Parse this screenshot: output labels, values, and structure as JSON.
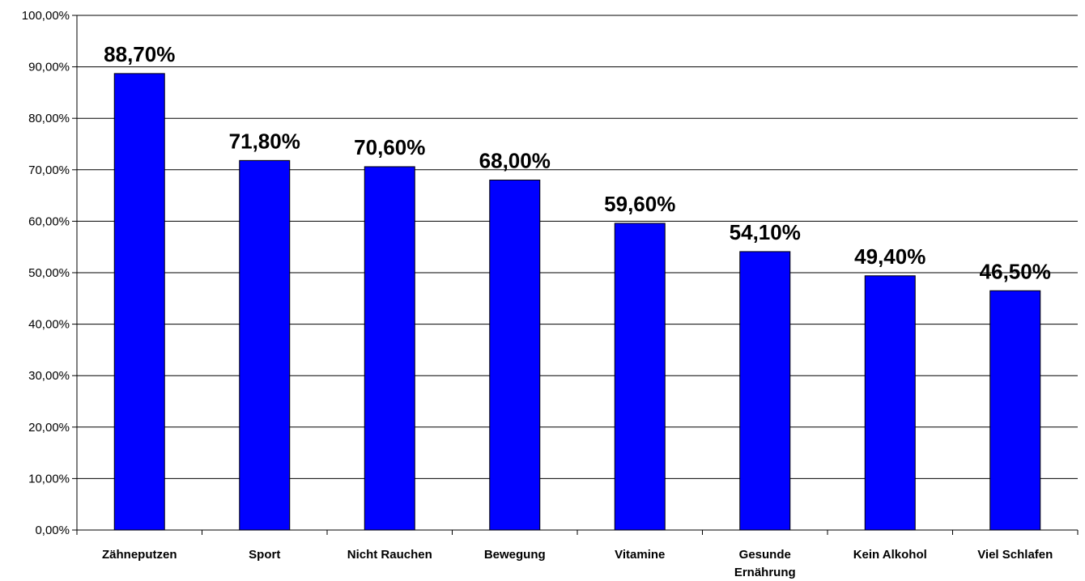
{
  "chart_data": {
    "type": "bar",
    "categories": [
      "Zähneputzen",
      "Sport",
      "Nicht Rauchen",
      "Bewegung",
      "Vitamine",
      "Gesunde Ernährung",
      "Kein Alkohol",
      "Viel Schlafen"
    ],
    "category_lines": [
      [
        "Zähneputzen"
      ],
      [
        "Sport"
      ],
      [
        "Nicht Rauchen"
      ],
      [
        "Bewegung"
      ],
      [
        "Vitamine"
      ],
      [
        "Gesunde",
        "Ernährung"
      ],
      [
        "Kein Alkohol"
      ],
      [
        "Viel Schlafen"
      ]
    ],
    "values": [
      88.7,
      71.8,
      70.6,
      68.0,
      59.6,
      54.1,
      49.4,
      46.5
    ],
    "data_labels": [
      "88,70%",
      "71,80%",
      "70,60%",
      "68,00%",
      "59,60%",
      "54,10%",
      "49,40%",
      "46,50%"
    ],
    "yticks": [
      0,
      10,
      20,
      30,
      40,
      50,
      60,
      70,
      80,
      90,
      100
    ],
    "ytick_labels": [
      "0,00%",
      "10,00%",
      "20,00%",
      "30,00%",
      "40,00%",
      "50,00%",
      "60,00%",
      "70,00%",
      "80,00%",
      "90,00%",
      "100,00%"
    ],
    "ylim": [
      0,
      100
    ],
    "title": "",
    "xlabel": "",
    "ylabel": "",
    "grid": true,
    "legend": "none",
    "colors": {
      "bar": "#0000ff",
      "bar_border": "#000000",
      "grid": "#000000"
    }
  }
}
